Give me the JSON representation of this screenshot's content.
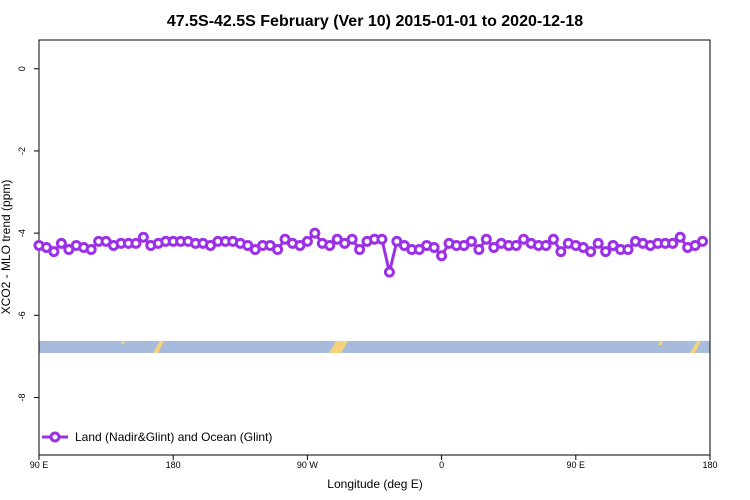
{
  "chart_data": {
    "type": "line",
    "title": "47.5S-42.5S February (Ver 10)   2015-01-01 to 2020-12-18",
    "x_label": "Longitude (deg E)",
    "y_label": "XCO2 - MLO trend (ppm)",
    "x": [
      90,
      95,
      100,
      105,
      110,
      115,
      120,
      125,
      130,
      135,
      140,
      145,
      150,
      155,
      160,
      165,
      170,
      175,
      180,
      185,
      190,
      195,
      200,
      205,
      210,
      215,
      220,
      225,
      230,
      235,
      240,
      245,
      250,
      255,
      260,
      265,
      270,
      275,
      280,
      285,
      290,
      295,
      300,
      305,
      310,
      315,
      320,
      325,
      330,
      335,
      340,
      345,
      350,
      355,
      360,
      365,
      370,
      375,
      380,
      385,
      390,
      395,
      400,
      405,
      410,
      415,
      420,
      425,
      430,
      435,
      440,
      445,
      450,
      455,
      460,
      465,
      470,
      475,
      480,
      485,
      490,
      495,
      500,
      505,
      510,
      515,
      520,
      525,
      530,
      535
    ],
    "series": [
      {
        "name": "Land (Nadir&Glint) and Ocean (Glint)",
        "color": "#9b30e6",
        "values": [
          -4.3,
          -4.35,
          -4.45,
          -4.25,
          -4.4,
          -4.3,
          -4.35,
          -4.4,
          -4.2,
          -4.2,
          -4.3,
          -4.25,
          -4.25,
          -4.25,
          -4.1,
          -4.3,
          -4.25,
          -4.2,
          -4.2,
          -4.2,
          -4.2,
          -4.25,
          -4.25,
          -4.3,
          -4.2,
          -4.2,
          -4.2,
          -4.25,
          -4.3,
          -4.4,
          -4.3,
          -4.3,
          -4.4,
          -4.15,
          -4.25,
          -4.3,
          -4.2,
          -4.0,
          -4.25,
          -4.3,
          -4.15,
          -4.25,
          -4.15,
          -4.4,
          -4.2,
          -4.15,
          -4.15,
          -4.95,
          -4.2,
          -4.3,
          -4.4,
          -4.4,
          -4.3,
          -4.35,
          -4.55,
          -4.25,
          -4.3,
          -4.3,
          -4.2,
          -4.4,
          -4.15,
          -4.35,
          -4.25,
          -4.3,
          -4.3,
          -4.15,
          -4.25,
          -4.3,
          -4.3,
          -4.15,
          -4.45,
          -4.25,
          -4.3,
          -4.35,
          -4.45,
          -4.25,
          -4.45,
          -4.3,
          -4.4,
          -4.4,
          -4.2,
          -4.25,
          -4.3,
          -4.25,
          -4.25,
          -4.25,
          -4.1,
          -4.35,
          -4.3,
          -4.2
        ]
      }
    ],
    "xlim": [
      90,
      540
    ],
    "xticks": [
      {
        "value": 90,
        "label": "90 E"
      },
      180,
      {
        "value": 270,
        "label": "90 W"
      },
      0,
      {
        "value": 450,
        "label": "90 E"
      },
      {
        "value": 540,
        "label": "180"
      }
    ],
    "ylim": [
      -9.4,
      0.7
    ],
    "yticks": [
      0,
      -2,
      -4,
      -6,
      -8
    ],
    "grid": false,
    "legend": "bottom-left"
  }
}
